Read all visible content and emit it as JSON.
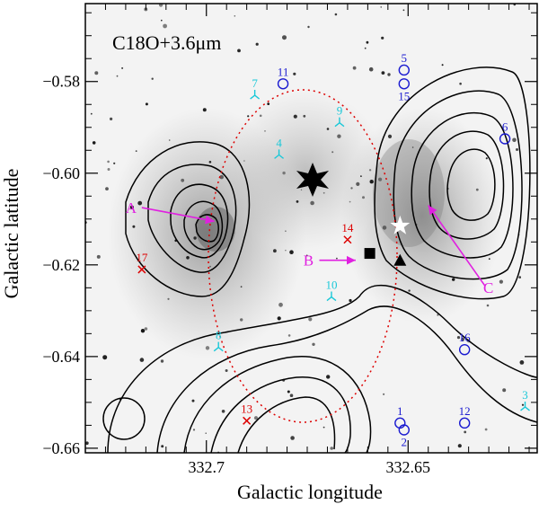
{
  "chart_data": {
    "type": "scatter",
    "title": "C18O+3.6μm",
    "xlabel": "Galactic longitude",
    "ylabel": "Galactic latitude",
    "xlim": [
      332.73,
      332.618
    ],
    "ylim": [
      -0.661,
      -0.563
    ],
    "x_ticks": [
      332.7,
      332.65
    ],
    "y_ticks": [
      -0.58,
      -0.6,
      -0.62,
      -0.64,
      -0.66
    ],
    "grid": false,
    "colors": {
      "contour": "#000000",
      "ellipse": "#dd0000",
      "red_source": "#dd0000",
      "cyan_source": "#19c8d8",
      "blue_source": "#1a1ad0",
      "arrow": "#e020e0"
    },
    "sources": [
      {
        "id": "1",
        "x": 332.652,
        "y": -0.6545,
        "marker": "circle",
        "color": "blue"
      },
      {
        "id": "2",
        "x": 332.651,
        "y": -0.656,
        "marker": "circle",
        "color": "blue"
      },
      {
        "id": "3",
        "x": 332.621,
        "y": -0.651,
        "marker": "tri",
        "color": "cyan"
      },
      {
        "id": "5",
        "x": 332.651,
        "y": -0.5775,
        "marker": "circle",
        "color": "blue"
      },
      {
        "id": "6",
        "x": 332.626,
        "y": -0.5925,
        "marker": "circle",
        "color": "blue"
      },
      {
        "id": "7",
        "x": 332.688,
        "y": -0.583,
        "marker": "tri",
        "color": "cyan"
      },
      {
        "id": "8",
        "x": 332.697,
        "y": -0.638,
        "marker": "tri",
        "color": "cyan"
      },
      {
        "id": "9",
        "x": 332.667,
        "y": -0.589,
        "marker": "tri",
        "color": "cyan"
      },
      {
        "id": "4",
        "x": 332.682,
        "y": -0.596,
        "marker": "tri",
        "color": "cyan"
      },
      {
        "id": "10",
        "x": 332.669,
        "y": -0.627,
        "marker": "tri",
        "color": "cyan"
      },
      {
        "id": "11",
        "x": 332.681,
        "y": -0.5805,
        "marker": "circle",
        "color": "blue"
      },
      {
        "id": "12",
        "x": 332.636,
        "y": -0.6545,
        "marker": "circle",
        "color": "blue"
      },
      {
        "id": "13",
        "x": 332.69,
        "y": -0.654,
        "marker": "x",
        "color": "red"
      },
      {
        "id": "14",
        "x": 332.665,
        "y": -0.6145,
        "marker": "x",
        "color": "red"
      },
      {
        "id": "15",
        "x": 332.651,
        "y": -0.5805,
        "marker": "circle",
        "color": "blue"
      },
      {
        "id": "16",
        "x": 332.636,
        "y": -0.6385,
        "marker": "circle",
        "color": "blue"
      },
      {
        "id": "17",
        "x": 332.716,
        "y": -0.621,
        "marker": "x",
        "color": "red"
      }
    ],
    "annotations": [
      {
        "label": "A",
        "x": 332.716,
        "y": -0.6075,
        "to_x": 332.698,
        "to_y": -0.6105
      },
      {
        "label": "B",
        "x": 332.672,
        "y": -0.619,
        "to_x": 332.663,
        "to_y": -0.619
      },
      {
        "label": "C",
        "x": 332.631,
        "y": -0.6245,
        "to_x": 332.645,
        "to_y": -0.607
      }
    ],
    "markers": [
      {
        "name": "star",
        "x": 332.652,
        "y": -0.6115,
        "color": "#ffffff"
      },
      {
        "name": "square",
        "x": 332.6595,
        "y": -0.6175,
        "color": "#000000"
      },
      {
        "name": "triangle",
        "x": 332.652,
        "y": -0.619,
        "color": "#000000"
      }
    ]
  }
}
